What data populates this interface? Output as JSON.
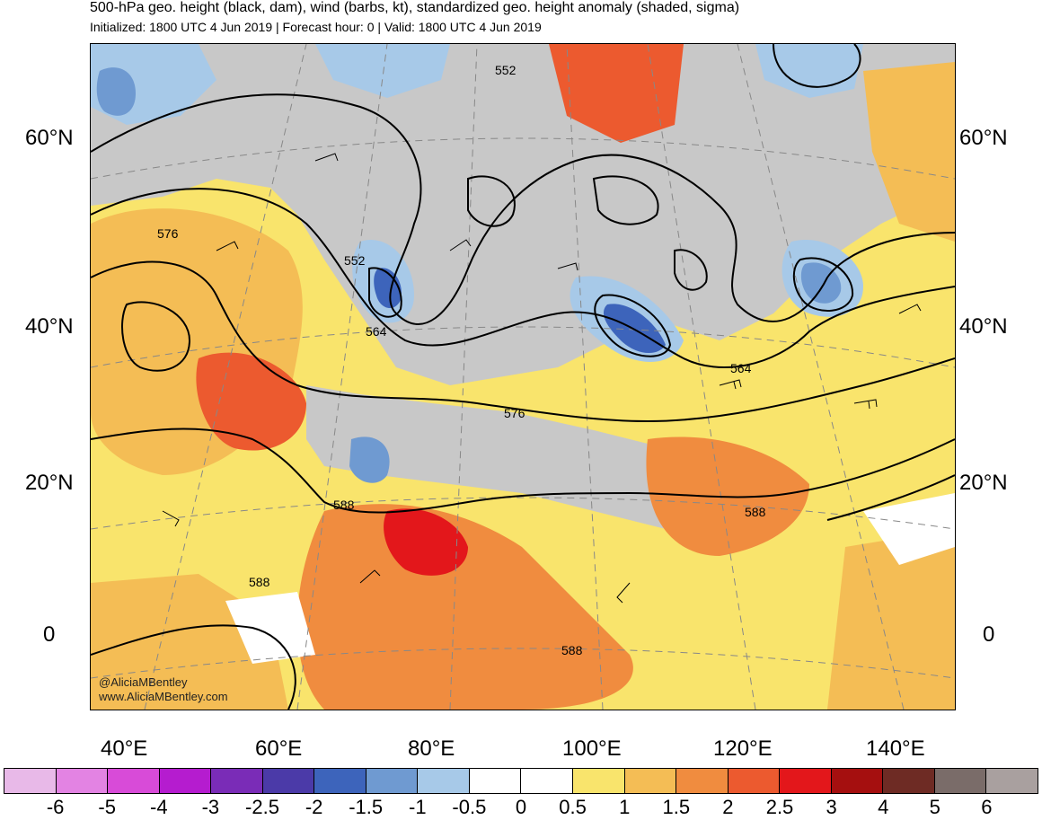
{
  "title": "500-hPa geo. height (black, dam), wind (barbs, kt), standardized geo. height anomaly (shaded, sigma)",
  "subtitle": "Initialized: 1800 UTC 4 Jun 2019 | Forecast hour: 0 | Valid: 1800 UTC 4 Jun 2019",
  "credit_handle": "@AliciaMBentley",
  "credit_url": "www.AliciaMBentley.com",
  "lat_labels": [
    "60°N",
    "40°N",
    "20°N",
    "0"
  ],
  "lon_labels": [
    "40°E",
    "60°E",
    "80°E",
    "100°E",
    "120°E",
    "140°E"
  ],
  "contour_labels": [
    "552",
    "576",
    "552",
    "564",
    "564",
    "576",
    "588",
    "588",
    "588",
    "588"
  ],
  "colorbar": {
    "labels": [
      "-6",
      "-5",
      "-4",
      "-3",
      "-2.5",
      "-2",
      "-1.5",
      "-1",
      "-0.5",
      "0",
      "0.5",
      "1",
      "1.5",
      "2",
      "2.5",
      "3",
      "4",
      "5",
      "6"
    ],
    "colors": [
      "#e8b9e8",
      "#e383e3",
      "#d84bd8",
      "#b51ccf",
      "#7a2cb7",
      "#4b3aa8",
      "#3d64bb",
      "#6f9ad1",
      "#a7c9e8",
      "#ffffff",
      "#ffffff",
      "#f9e46c",
      "#f4bd55",
      "#f08c3f",
      "#ec5a2f",
      "#e3171b",
      "#a50f0f",
      "#6e2b24",
      "#7a6c69",
      "#a9a09f"
    ]
  },
  "shading_colors": {
    "neutral_gray": "#c8c8c8",
    "yellow": "#f9e46c",
    "light_orange": "#f4bd55",
    "orange": "#f08c3f",
    "dark_orange": "#ec5a2f",
    "red": "#e3171b",
    "light_blue": "#a7c9e8",
    "blue": "#6f9ad1",
    "dark_blue": "#3d64bb"
  }
}
